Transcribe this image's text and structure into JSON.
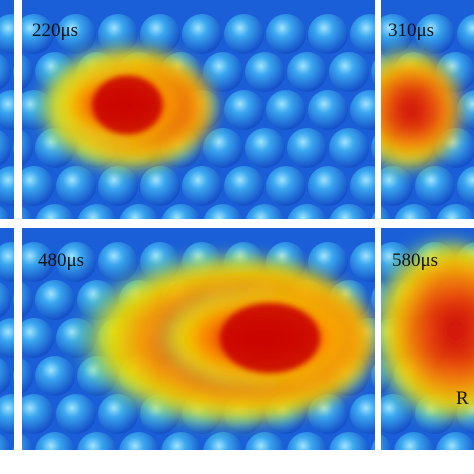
{
  "panels": [
    {
      "label": "220μs"
    },
    {
      "label": "310μs"
    },
    {
      "label": "480μs"
    },
    {
      "label": "580μs"
    }
  ],
  "fragment": "R"
}
